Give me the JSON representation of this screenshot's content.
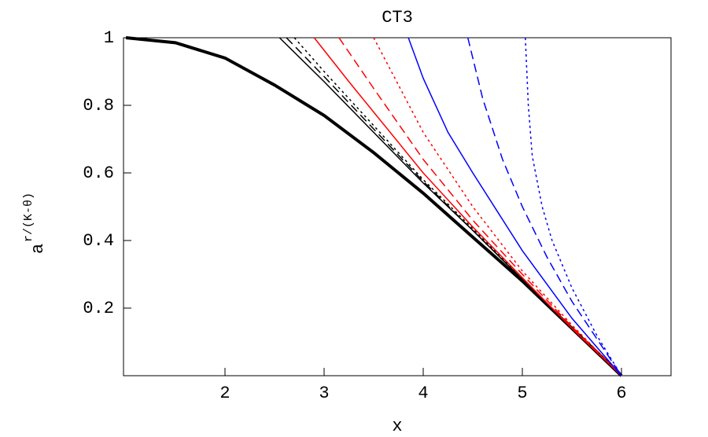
{
  "chart_data": {
    "type": "line",
    "title": "CT3",
    "xlabel": "x",
    "ylabel": "a",
    "ylabel_sup": "r/(K-θ)",
    "xlim": [
      1,
      6.5
    ],
    "ylim": [
      0,
      1
    ],
    "xticks": [
      2,
      3,
      4,
      5,
      6
    ],
    "yticks": [
      0.2,
      0.4,
      0.6,
      0.8,
      1
    ],
    "grid": false,
    "series": [
      {
        "color": "#000000",
        "dash": "solid",
        "linewidth": 4,
        "x": [
          1,
          1.5,
          2,
          2.5,
          3,
          3.5,
          4,
          4.5,
          5,
          5.5,
          6
        ],
        "values": [
          1,
          0.985,
          0.94,
          0.86,
          0.77,
          0.66,
          0.54,
          0.41,
          0.28,
          0.14,
          0
        ]
      },
      {
        "color": "#000000",
        "dash": "solid",
        "linewidth": 1.5,
        "x": [
          2.55,
          3,
          3.5,
          4,
          4.5,
          5,
          5.5,
          6
        ],
        "values": [
          1,
          0.87,
          0.72,
          0.57,
          0.43,
          0.285,
          0.14,
          0
        ]
      },
      {
        "color": "#000000",
        "dash": "dashed",
        "linewidth": 1.5,
        "x": [
          2.62,
          3,
          3.5,
          4,
          4.5,
          5,
          5.5,
          6
        ],
        "values": [
          1,
          0.885,
          0.73,
          0.575,
          0.43,
          0.285,
          0.14,
          0
        ]
      },
      {
        "color": "#000000",
        "dash": "dotted",
        "linewidth": 1.5,
        "x": [
          2.7,
          3,
          3.5,
          4,
          4.5,
          5,
          5.5,
          6
        ],
        "values": [
          1,
          0.9,
          0.74,
          0.58,
          0.435,
          0.287,
          0.14,
          0
        ]
      },
      {
        "color": "#ff0000",
        "dash": "solid",
        "linewidth": 1.5,
        "x": [
          2.9,
          3.25,
          3.5,
          4,
          4.5,
          5,
          5.5,
          6
        ],
        "values": [
          1,
          0.87,
          0.78,
          0.6,
          0.44,
          0.29,
          0.14,
          0
        ]
      },
      {
        "color": "#ff0000",
        "dash": "dashed",
        "linewidth": 1.5,
        "x": [
          3.15,
          3.5,
          4,
          4.5,
          5,
          5.5,
          6
        ],
        "values": [
          1,
          0.85,
          0.64,
          0.46,
          0.3,
          0.145,
          0
        ]
      },
      {
        "color": "#ff0000",
        "dash": "dotted",
        "linewidth": 1.5,
        "x": [
          3.5,
          3.75,
          4,
          4.5,
          5,
          5.5,
          6
        ],
        "values": [
          1,
          0.86,
          0.72,
          0.5,
          0.31,
          0.15,
          0
        ]
      },
      {
        "color": "#0000ff",
        "dash": "solid",
        "linewidth": 1.5,
        "x": [
          3.85,
          4,
          4.25,
          4.5,
          5,
          5.5,
          6
        ],
        "values": [
          1,
          0.88,
          0.72,
          0.6,
          0.37,
          0.17,
          0
        ]
      },
      {
        "color": "#0000ff",
        "dash": "dashed",
        "linewidth": 1.5,
        "x": [
          4.45,
          4.6,
          4.8,
          5,
          5.25,
          5.5,
          6
        ],
        "values": [
          1,
          0.82,
          0.64,
          0.5,
          0.35,
          0.22,
          0
        ]
      },
      {
        "color": "#0000ff",
        "dash": "dotted",
        "linewidth": 1.5,
        "x": [
          5.03,
          5.06,
          5.1,
          5.2,
          5.3,
          5.5,
          5.75,
          6
        ],
        "values": [
          1,
          0.8,
          0.65,
          0.5,
          0.4,
          0.26,
          0.12,
          0
        ]
      }
    ]
  }
}
